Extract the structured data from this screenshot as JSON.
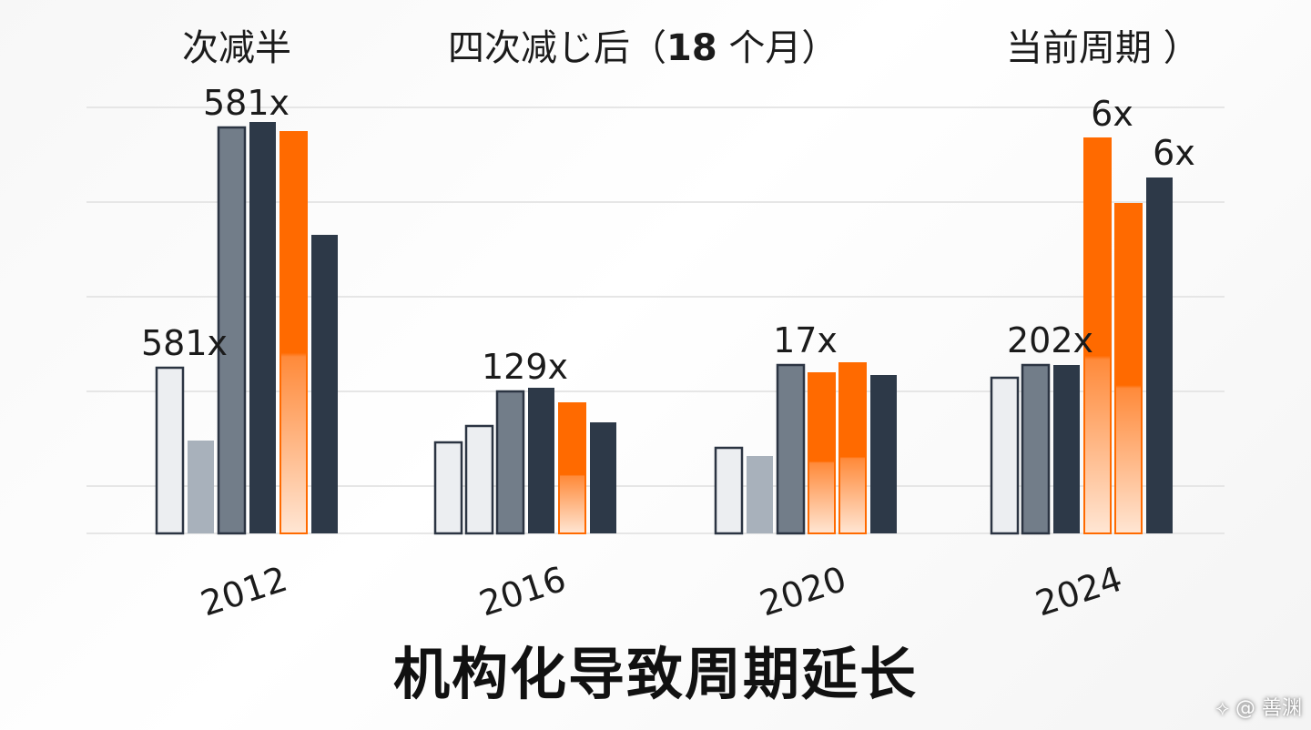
{
  "header": {
    "left": "次减半",
    "middle_pre": "四次减",
    "middle_glyph": "じ",
    "middle_post": "后（",
    "middle_bold": "18",
    "middle_tail": " 个月）",
    "right": "当前周期 ）"
  },
  "subtitle": "机构化导致周期延长",
  "watermark": "⟡ @ 善渊",
  "colors": {
    "white_bar": "#eceef1",
    "light_gray": "#a8b1bb",
    "mid_gray": "#727d89",
    "dark_navy": "#2d3948",
    "orange": "#ff6a00",
    "outline": "#2b3442",
    "grid": "#e6e6e6"
  },
  "chart_data": {
    "type": "bar",
    "categories": [
      "2012",
      "2016",
      "2020",
      "2024"
    ],
    "bar_style_keys": [
      "white",
      "lightgray",
      "midgray",
      "navy",
      "orange"
    ],
    "groups": [
      {
        "year": "2012",
        "bars": [
          {
            "style": "white",
            "value": 182
          },
          {
            "style": "lightgray",
            "value": 102
          },
          {
            "style": "midgray",
            "value": 446
          },
          {
            "style": "navy",
            "value": 452
          },
          {
            "style": "orange",
            "value": 441
          },
          {
            "style": "navy",
            "value": 328
          }
        ],
        "labels": [
          {
            "text": "581x",
            "bar": 0
          },
          {
            "text": "581x",
            "bar": 2
          }
        ]
      },
      {
        "year": "2016",
        "bars": [
          {
            "style": "white",
            "value": 100
          },
          {
            "style": "white",
            "value": 118
          },
          {
            "style": "midgray",
            "value": 156
          },
          {
            "style": "navy",
            "value": 160
          },
          {
            "style": "orange",
            "value": 143
          },
          {
            "style": "navy",
            "value": 122
          }
        ],
        "labels": [
          {
            "text": "129x",
            "bar": 2
          }
        ]
      },
      {
        "year": "2020",
        "bars": [
          {
            "style": "white",
            "value": 94
          },
          {
            "style": "lightgray",
            "value": 85
          },
          {
            "style": "midgray",
            "value": 185
          },
          {
            "style": "orange",
            "value": 176
          },
          {
            "style": "orange",
            "value": 187
          },
          {
            "style": "navy",
            "value": 174
          }
        ],
        "labels": [
          {
            "text": "17x",
            "bar": 2
          }
        ]
      },
      {
        "year": "2024",
        "bars": [
          {
            "style": "white",
            "value": 171
          },
          {
            "style": "midgray",
            "value": 185
          },
          {
            "style": "navy",
            "value": 185
          },
          {
            "style": "orange",
            "value": 434
          },
          {
            "style": "orange",
            "value": 362
          },
          {
            "style": "navy",
            "value": 391
          }
        ],
        "labels": [
          {
            "text": "202x",
            "bar": 1
          },
          {
            "text": "6x",
            "bar": 3
          },
          {
            "text": "6x",
            "bar": 5
          }
        ]
      }
    ],
    "ylim": [
      0,
      480
    ],
    "gridlines": [
      0,
      52,
      156,
      260,
      364,
      468
    ],
    "grid": true
  }
}
